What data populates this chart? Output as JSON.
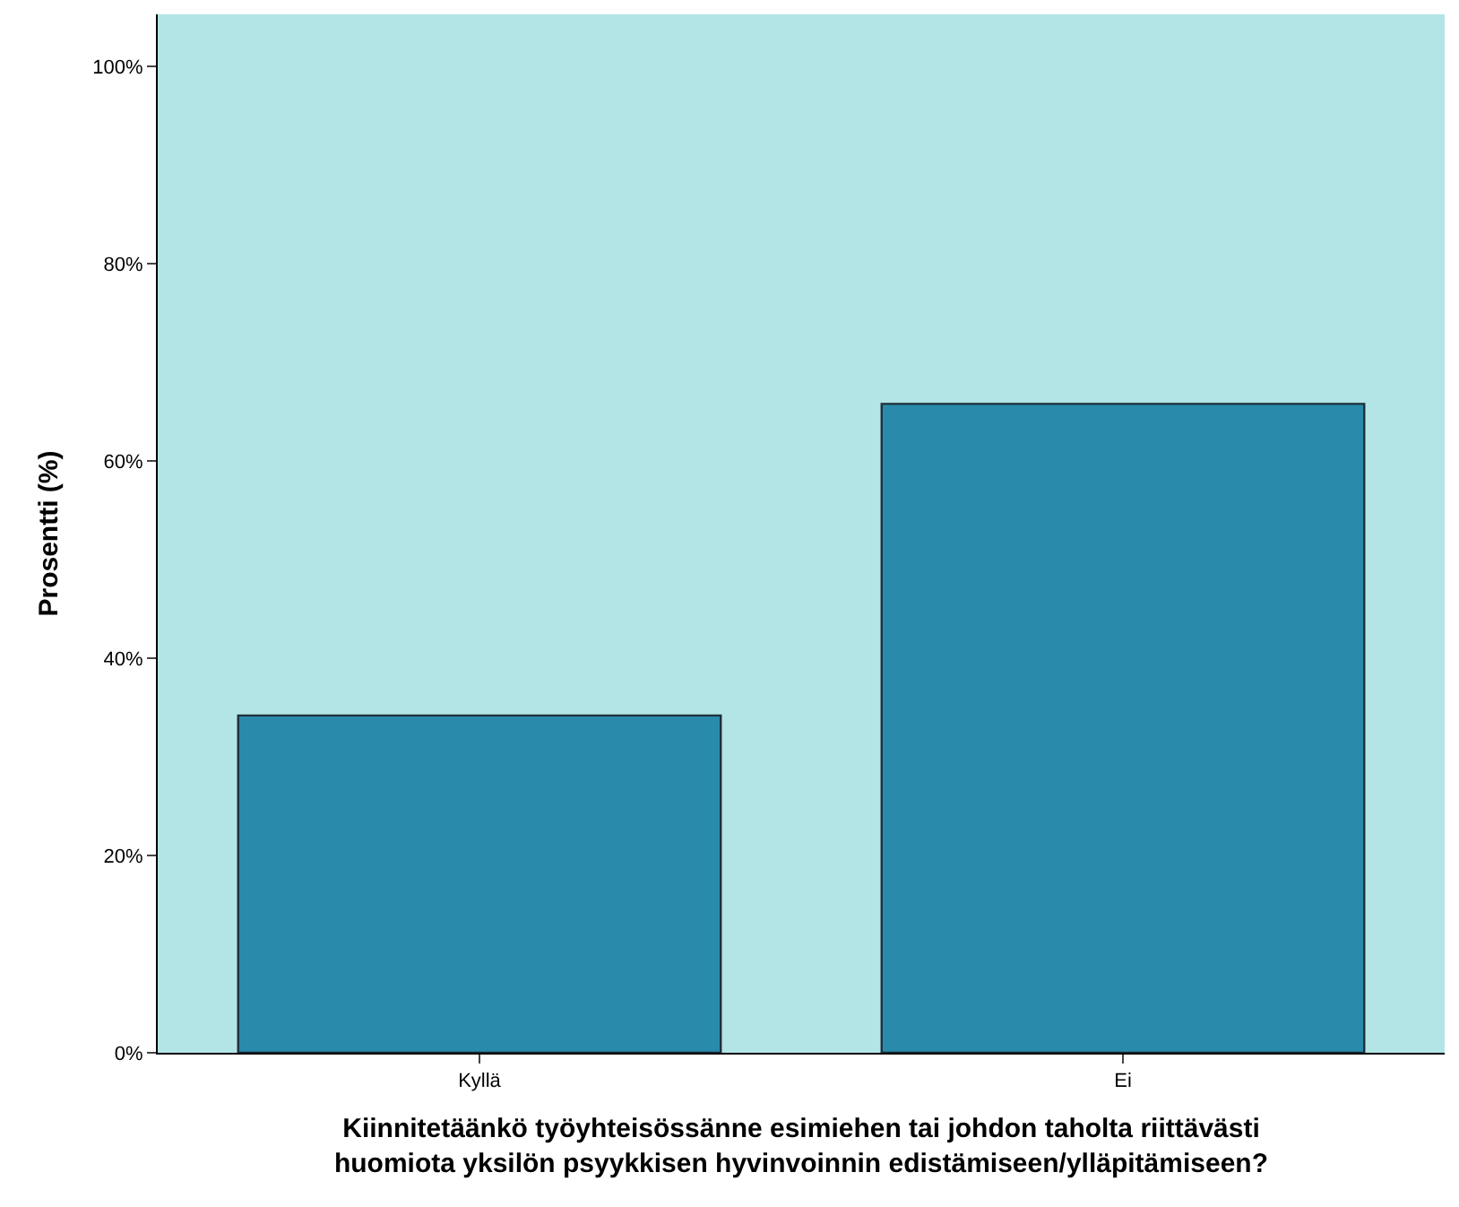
{
  "chart_data": {
    "type": "bar",
    "xlabel": "Kiinnitetäänkö työyhteisössänne esimiehen tai johdon taholta riittävästi\nhuomiota yksilön psyykkisen hyvinvoinnin edistämiseen/ylläpitämiseen?",
    "ylabel": "Prosentti (%)",
    "categories": [
      "Kyllä",
      "Ei"
    ],
    "series": [
      {
        "color": "#2a8aac",
        "values": [
          34.2,
          65.8
        ]
      }
    ],
    "ylim": [
      0,
      105.3
    ],
    "yticks": [
      {
        "value": 0,
        "label": "0%"
      },
      {
        "value": 20,
        "label": "20%"
      },
      {
        "value": 40,
        "label": "40%"
      },
      {
        "value": 60,
        "label": "60%"
      },
      {
        "value": 80,
        "label": "80%"
      },
      {
        "value": 100,
        "label": "100%"
      }
    ],
    "grid": false,
    "legend": false
  }
}
